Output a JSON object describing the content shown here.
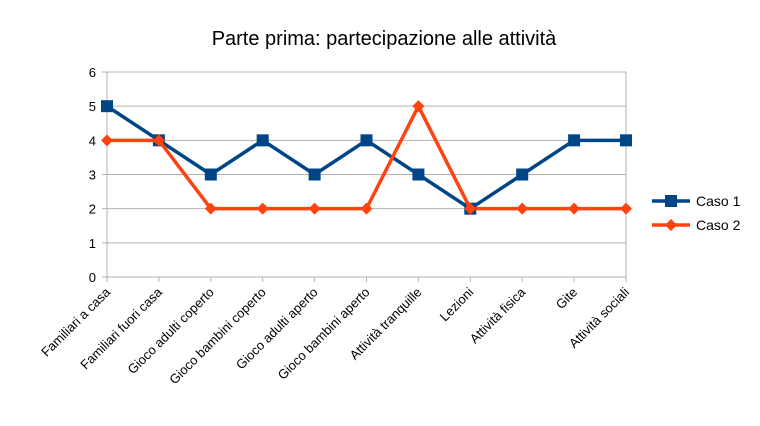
{
  "chart_data": {
    "type": "line",
    "title": "Parte prima: partecipazione alle attività",
    "xlabel": "",
    "ylabel": "",
    "categories": [
      "Familiari a casa",
      "Familiari fuori casa",
      "Gioco adulti coperto",
      "Gioco bambini coperto",
      "Gioco adulti aperto",
      "Gioco bambini aperto",
      "Attività tranquille",
      "Lezioni",
      "Attività fisica",
      "Gite",
      "Attività sociali"
    ],
    "ylim": [
      0,
      6
    ],
    "yticks": [
      "0",
      "1",
      "2",
      "3",
      "4",
      "5",
      "6"
    ],
    "grid": true,
    "legend_position": "right",
    "series": [
      {
        "name": "Caso 1",
        "values": [
          5,
          4,
          3,
          4,
          3,
          4,
          3,
          2,
          3,
          4,
          4
        ],
        "color": "#004586",
        "marker": "square"
      },
      {
        "name": "Caso 2",
        "values": [
          4,
          4,
          2,
          2,
          2,
          2,
          5,
          2,
          2,
          2,
          2
        ],
        "color": "#ff420e",
        "marker": "diamond"
      }
    ]
  }
}
